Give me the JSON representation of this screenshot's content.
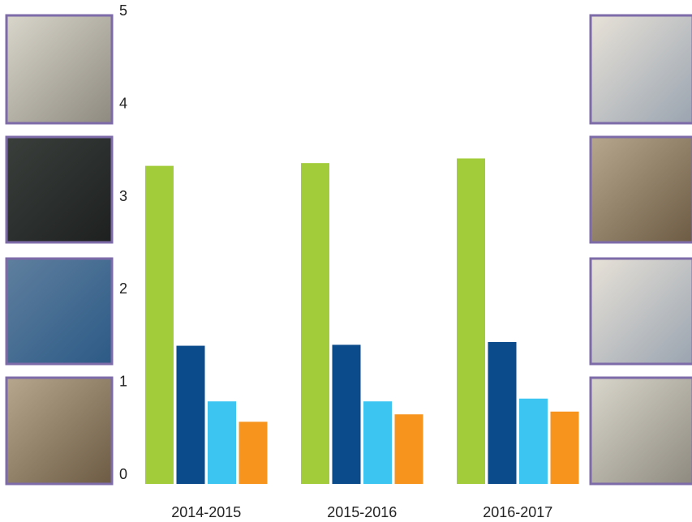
{
  "chart_data": {
    "type": "bar",
    "categories": [
      "2014-2015",
      "2015-2016",
      "2016-2017"
    ],
    "series": [
      {
        "color": "#a3cc3a",
        "values": [
          3.43,
          3.46,
          3.51
        ]
      },
      {
        "color": "#0b4a8b",
        "values": [
          1.49,
          1.5,
          1.53
        ]
      },
      {
        "color": "#3cc5f1",
        "values": [
          0.89,
          0.89,
          0.92
        ]
      },
      {
        "color": "#f7941d",
        "values": [
          0.67,
          0.75,
          0.78
        ]
      }
    ],
    "ylim": [
      0,
      5
    ],
    "yticks": [
      0,
      1,
      2,
      3,
      4,
      5
    ],
    "grid": true
  }
}
